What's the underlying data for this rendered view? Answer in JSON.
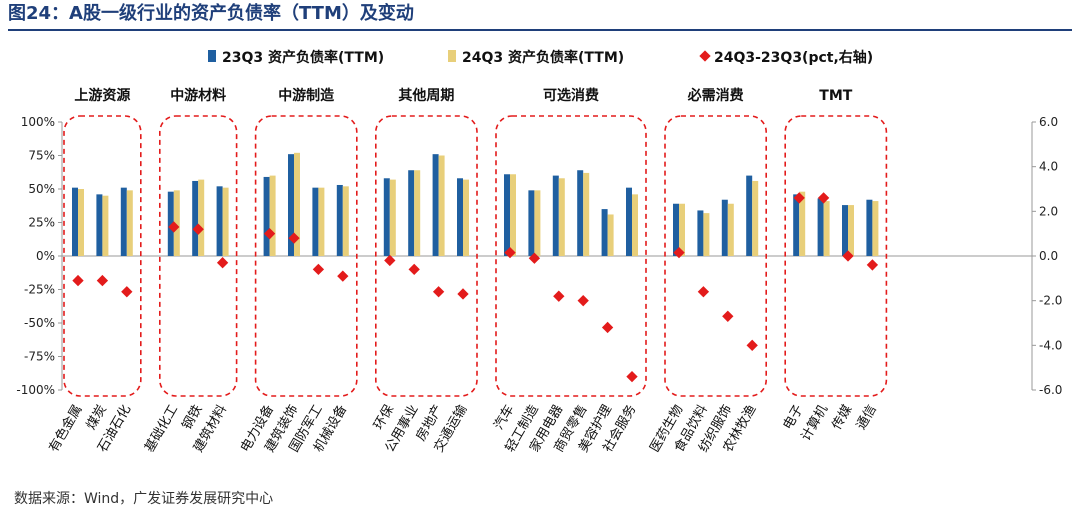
{
  "figure_title": "图24：A股一级行业的资产负债率（TTM）及变动",
  "source_note": "数据来源：Wind，广发证券发展研究中心",
  "colors": {
    "s23": "#1f5fa0",
    "s24": "#e8cf7a",
    "diff": "#e31b1b",
    "group_border": "#e31b1b",
    "title": "#1f3f7a"
  },
  "chart_data": {
    "type": "bar",
    "legend_position": "top",
    "grid": false,
    "ylim_left": [
      -1.0,
      1.0
    ],
    "ylim_right": [
      -6.0,
      6.0
    ],
    "y_left_ticks": [
      "100%",
      "75%",
      "50%",
      "25%",
      "0%",
      "-25%",
      "-50%",
      "-75%",
      "-100%"
    ],
    "y_right_ticks": [
      "6.0",
      "4.0",
      "2.0",
      "0.0",
      "-2.0",
      "-4.0",
      "-6.0"
    ],
    "groups": [
      {
        "name": "上游资源",
        "count": 3
      },
      {
        "name": "中游材料",
        "count": 3
      },
      {
        "name": "中游制造",
        "count": 4
      },
      {
        "name": "其他周期",
        "count": 4
      },
      {
        "name": "可选消费",
        "count": 6
      },
      {
        "name": "必需消费",
        "count": 4
      },
      {
        "name": "TMT",
        "count": 4
      }
    ],
    "categories": [
      "有色金属",
      "煤炭",
      "石油石化",
      "基础化工",
      "钢铁",
      "建筑材料",
      "电力设备",
      "建筑装饰",
      "国防军工",
      "机械设备",
      "环保",
      "公用事业",
      "房地产",
      "交通运输",
      "汽车",
      "轻工制造",
      "家用电器",
      "商贸零售",
      "美容护理",
      "社会服务",
      "医药生物",
      "食品饮料",
      "纺织服饰",
      "农林牧渔",
      "电子",
      "计算机",
      "传媒",
      "通信"
    ],
    "series": [
      {
        "name": "23Q3 资产负债率(TTM)",
        "axis": "left",
        "values": [
          0.51,
          0.46,
          0.51,
          0.48,
          0.56,
          0.52,
          0.59,
          0.76,
          0.51,
          0.53,
          0.58,
          0.64,
          0.76,
          0.58,
          0.61,
          0.49,
          0.6,
          0.64,
          0.35,
          0.51,
          0.39,
          0.34,
          0.42,
          0.6,
          0.46,
          0.43,
          0.38,
          0.42
        ]
      },
      {
        "name": "24Q3 资产负债率(TTM)",
        "axis": "left",
        "values": [
          0.5,
          0.45,
          0.49,
          0.49,
          0.57,
          0.51,
          0.6,
          0.77,
          0.51,
          0.52,
          0.57,
          0.64,
          0.75,
          0.57,
          0.61,
          0.49,
          0.58,
          0.62,
          0.31,
          0.46,
          0.39,
          0.32,
          0.39,
          0.56,
          0.48,
          0.41,
          0.38,
          0.41
        ]
      },
      {
        "name": "24Q3-23Q3(pct,右轴)",
        "axis": "right",
        "marker": "diamond",
        "values": [
          -1.1,
          -1.1,
          -1.6,
          1.3,
          1.2,
          -0.3,
          1.0,
          0.8,
          -0.6,
          -0.9,
          -0.2,
          -0.6,
          -1.6,
          -1.7,
          0.15,
          -0.1,
          -1.8,
          -2.0,
          -3.2,
          -5.4,
          0.15,
          -1.6,
          -2.7,
          -4.0,
          2.6,
          2.6,
          0.0,
          -0.4
        ]
      }
    ]
  }
}
